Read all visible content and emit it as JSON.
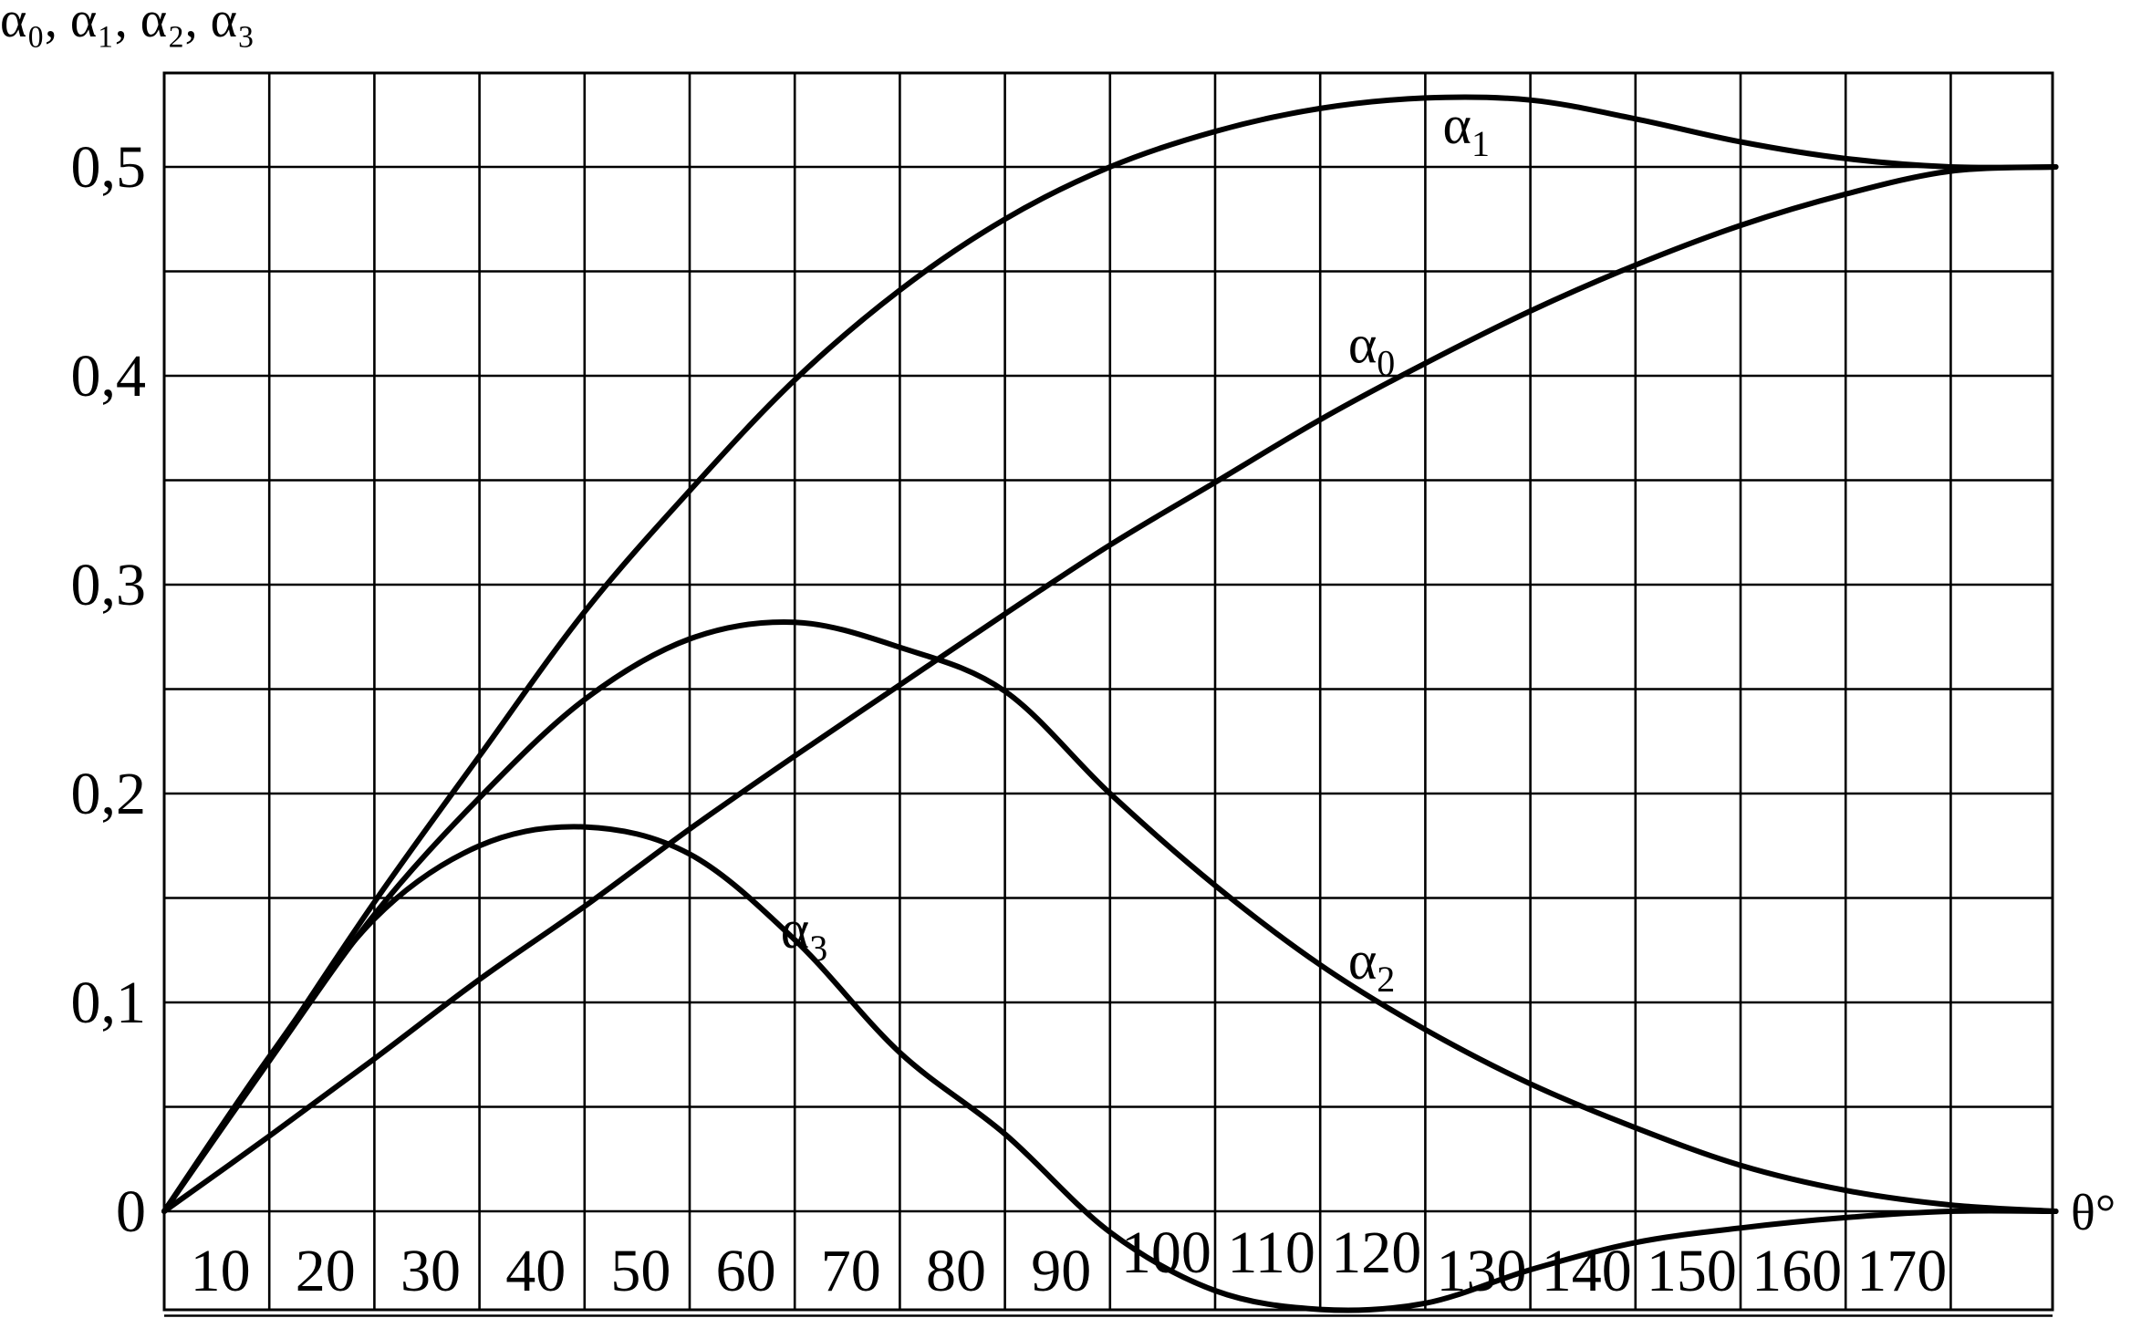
{
  "chart_data": {
    "type": "line",
    "title": "",
    "ylabel": "α₀, α₁, α₂, α₃",
    "xlabel": "θ°",
    "xlim": [
      0,
      180
    ],
    "ylim": [
      -0.05,
      0.55
    ],
    "grid": true,
    "y_ticks": [
      {
        "value": 0,
        "label": "0"
      },
      {
        "value": 0.1,
        "label": "0,1"
      },
      {
        "value": 0.2,
        "label": "0,2"
      },
      {
        "value": 0.3,
        "label": "0,3"
      },
      {
        "value": 0.4,
        "label": "0,4"
      },
      {
        "value": 0.5,
        "label": "0,5"
      }
    ],
    "x_ticks": [
      "10",
      "20",
      "30",
      "40",
      "50",
      "60",
      "70",
      "80",
      "90",
      "100",
      "110",
      "120",
      "130",
      "140",
      "150",
      "160",
      "170"
    ],
    "series": [
      {
        "name": "α₀",
        "base": "α",
        "sub": "0",
        "label_at": [
          117,
          0.415
        ],
        "points": [
          [
            0,
            0
          ],
          [
            10,
            0.036
          ],
          [
            20,
            0.073
          ],
          [
            30,
            0.111
          ],
          [
            40,
            0.146
          ],
          [
            50,
            0.183
          ],
          [
            60,
            0.218
          ],
          [
            70,
            0.252
          ],
          [
            80,
            0.286
          ],
          [
            90,
            0.319
          ],
          [
            100,
            0.349
          ],
          [
            110,
            0.379
          ],
          [
            120,
            0.406
          ],
          [
            130,
            0.431
          ],
          [
            140,
            0.453
          ],
          [
            150,
            0.472
          ],
          [
            160,
            0.487
          ],
          [
            170,
            0.498
          ],
          [
            180,
            0.5
          ]
        ]
      },
      {
        "name": "α₁",
        "base": "α",
        "sub": "1",
        "label_at": [
          126,
          0.52
        ],
        "points": [
          [
            0,
            0
          ],
          [
            10,
            0.073
          ],
          [
            20,
            0.148
          ],
          [
            30,
            0.218
          ],
          [
            40,
            0.287
          ],
          [
            50,
            0.345
          ],
          [
            60,
            0.398
          ],
          [
            70,
            0.441
          ],
          [
            80,
            0.475
          ],
          [
            90,
            0.5
          ],
          [
            100,
            0.517
          ],
          [
            110,
            0.528
          ],
          [
            120,
            0.533
          ],
          [
            130,
            0.532
          ],
          [
            140,
            0.523
          ],
          [
            150,
            0.512
          ],
          [
            160,
            0.504
          ],
          [
            170,
            0.5
          ],
          [
            180,
            0.5
          ]
        ]
      },
      {
        "name": "α₂",
        "base": "α",
        "sub": "2",
        "label_at": [
          117,
          0.12
        ],
        "points": [
          [
            0,
            0
          ],
          [
            10,
            0.072
          ],
          [
            20,
            0.142
          ],
          [
            30,
            0.198
          ],
          [
            40,
            0.245
          ],
          [
            50,
            0.274
          ],
          [
            60,
            0.282
          ],
          [
            70,
            0.27
          ],
          [
            80,
            0.249
          ],
          [
            90,
            0.2
          ],
          [
            100,
            0.156
          ],
          [
            110,
            0.118
          ],
          [
            120,
            0.087
          ],
          [
            130,
            0.061
          ],
          [
            140,
            0.04
          ],
          [
            150,
            0.022
          ],
          [
            160,
            0.01
          ],
          [
            170,
            0.003
          ],
          [
            180,
            0.0
          ]
        ]
      },
      {
        "name": "α₃",
        "base": "α",
        "sub": "3",
        "label_at": [
          63,
          0.135
        ],
        "points": [
          [
            0,
            0
          ],
          [
            10,
            0.074
          ],
          [
            20,
            0.14
          ],
          [
            30,
            0.175
          ],
          [
            40,
            0.184
          ],
          [
            50,
            0.171
          ],
          [
            60,
            0.13
          ],
          [
            70,
            0.076
          ],
          [
            80,
            0.037
          ],
          [
            90,
            -0.01
          ],
          [
            100,
            -0.038
          ],
          [
            110,
            -0.047
          ],
          [
            120,
            -0.044
          ],
          [
            130,
            -0.028
          ],
          [
            140,
            -0.015
          ],
          [
            150,
            -0.008
          ],
          [
            160,
            -0.003
          ],
          [
            170,
            0.0
          ],
          [
            180,
            0.0
          ]
        ]
      }
    ]
  }
}
